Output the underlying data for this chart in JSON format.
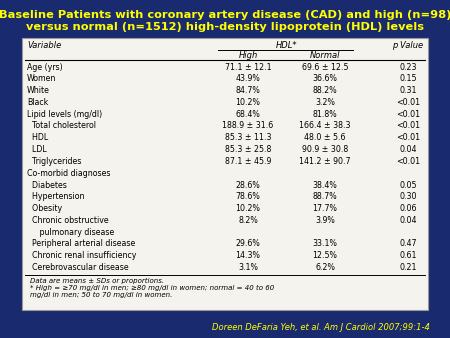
{
  "title_line1": "Baseline Patients with coronary artery disease (CAD) and high (n=98)",
  "title_line2": "versus normal (n=1512) high-density lipoprotein (HDL) levels",
  "title_color": "#FFFF00",
  "background_color": "#1a2a6e",
  "table_bg": "#f5f3ee",
  "rows": [
    [
      "Age (yrs)",
      "71.1 ± 12.1",
      "69.6 ± 12.5",
      "0.23"
    ],
    [
      "Women",
      "43.9%",
      "36.6%",
      "0.15"
    ],
    [
      "White",
      "84.7%",
      "88.2%",
      "0.31"
    ],
    [
      "Black",
      "10.2%",
      "3.2%",
      "<0.01"
    ],
    [
      "Lipid levels (mg/dl)",
      "68.4%",
      "81.8%",
      "<0.01"
    ],
    [
      "  Total cholesterol",
      "188.9 ± 31.6",
      "166.4 ± 38.3",
      "<0.01"
    ],
    [
      "  HDL",
      "85.3 ± 11.3",
      "48.0 ± 5.6",
      "<0.01"
    ],
    [
      "  LDL",
      "85.3 ± 25.8",
      "90.9 ± 30.8",
      "0.04"
    ],
    [
      "  Triglycerides",
      "87.1 ± 45.9",
      "141.2 ± 90.7",
      "<0.01"
    ],
    [
      "Co-morbid diagnoses",
      "",
      "",
      ""
    ],
    [
      "  Diabetes",
      "28.6%",
      "38.4%",
      "0.05"
    ],
    [
      "  Hypertension",
      "78.6%",
      "88.7%",
      "0.30"
    ],
    [
      "  Obesity",
      "10.2%",
      "17.7%",
      "0.06"
    ],
    [
      "  Chronic obstructive",
      "8.2%",
      "3.9%",
      "0.04"
    ],
    [
      "     pulmonary disease",
      "",
      "",
      ""
    ],
    [
      "  Peripheral arterial disease",
      "29.6%",
      "33.1%",
      "0.47"
    ],
    [
      "  Chronic renal insufficiency",
      "14.3%",
      "12.5%",
      "0.61"
    ],
    [
      "  Cerebrovascular disease",
      "3.1%",
      "6.2%",
      "0.21"
    ]
  ],
  "footnote1": "Data are means ± SDs or proportions.",
  "footnote2": "* High = ≥70 mg/dl in men; ≥80 mg/dl in women; normal = 40 to 60",
  "footnote3": "mg/dl in men; 50 to 70 mg/dl in women.",
  "citation": "Doreen DeFaria Yeh, et al. Am J Cardiol 2007;99:1-4",
  "citation_color": "#FFFF00"
}
